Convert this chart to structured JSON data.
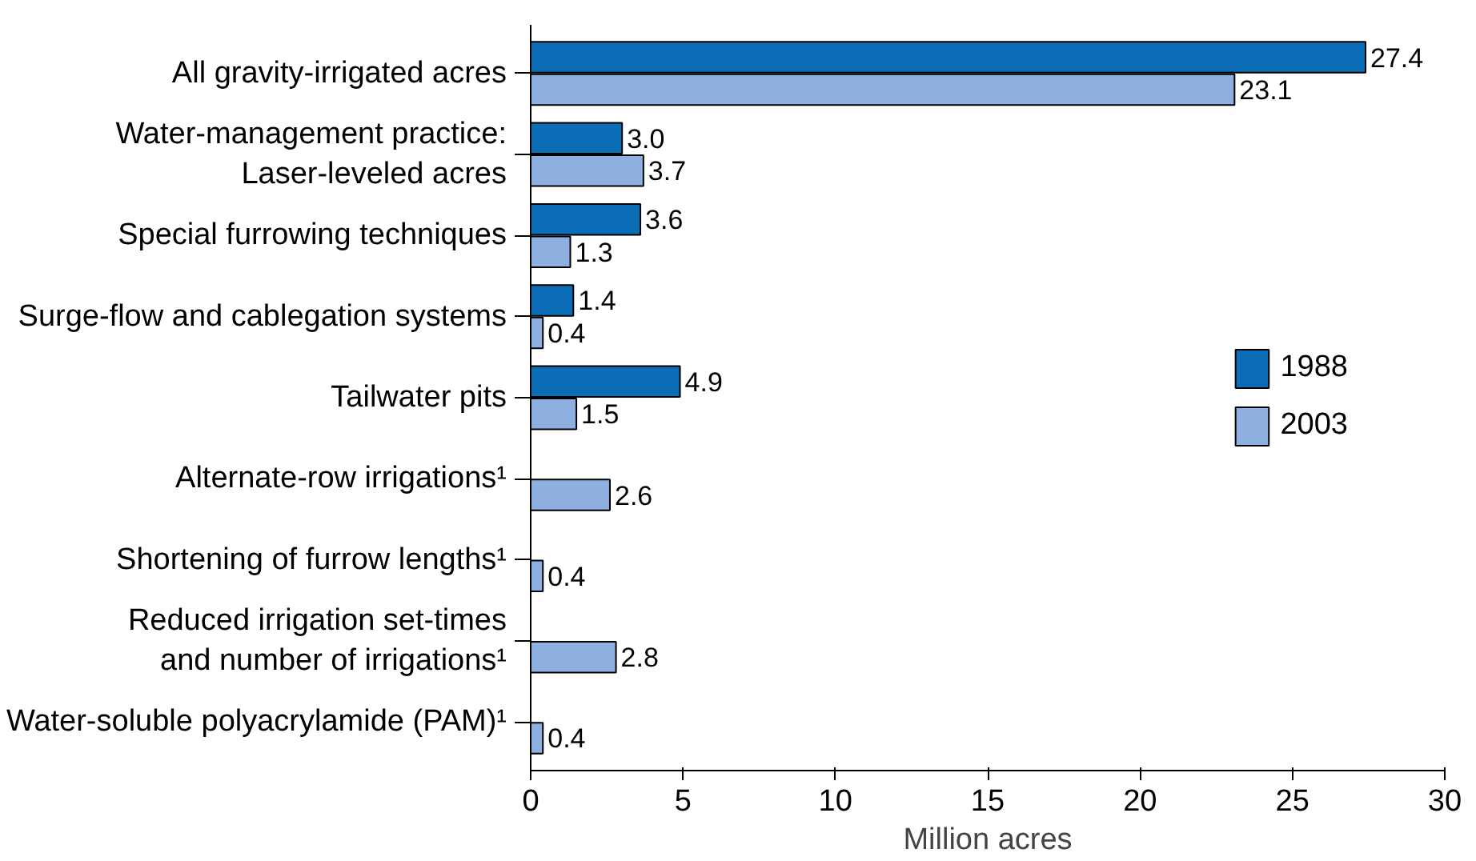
{
  "chart_data": {
    "type": "bar",
    "orientation": "horizontal",
    "xlabel": "Million acres",
    "categories": [
      "All gravity-irrigated acres",
      "Water-management practice:\nLaser-leveled acres",
      "Special furrowing techniques",
      "Surge-flow and cablegation systems",
      "Tailwater pits",
      "Alternate-row irrigations¹",
      "Shortening of furrow lengths¹",
      "Reduced irrigation set-times\nand number of irrigations¹",
      "Water-soluble polyacrylamide (PAM)¹"
    ],
    "series": [
      {
        "name": "1988",
        "color": "#0b6db5",
        "values": [
          27.4,
          3.0,
          3.6,
          1.4,
          4.9,
          null,
          null,
          null,
          null
        ],
        "value_labels": [
          "27.4",
          "3.0",
          "3.6",
          "1.4",
          "4.9",
          null,
          null,
          null,
          null
        ]
      },
      {
        "name": "2003",
        "color": "#8eb0e0",
        "values": [
          23.1,
          3.7,
          1.3,
          0.4,
          1.5,
          2.6,
          0.4,
          2.8,
          0.4
        ],
        "value_labels": [
          "23.1",
          "3.7",
          "1.3",
          "0.4",
          "1.5",
          "2.6",
          "0.4",
          "2.8",
          "0.4"
        ]
      }
    ],
    "xlim": [
      0,
      30
    ],
    "xticks": [
      0,
      5,
      10,
      15,
      20,
      25,
      30
    ],
    "grid": false,
    "legend": "right"
  }
}
